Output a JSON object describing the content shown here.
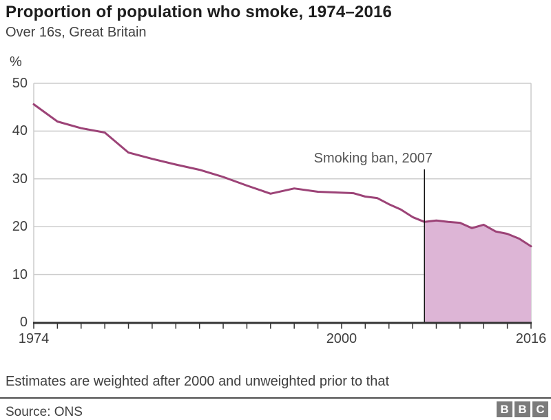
{
  "header": {
    "title": "Proportion of population who smoke, 1974–2016",
    "subtitle": "Over 16s, Great Britain"
  },
  "chart_data": {
    "type": "line",
    "title": "Proportion of population who smoke, 1974–2016",
    "subtitle": "Over 16s, Great Britain",
    "ylabel": "%",
    "xlim": [
      1974,
      2016
    ],
    "ylim": [
      0,
      50
    ],
    "yticks": [
      0,
      10,
      20,
      30,
      40,
      50
    ],
    "xticks": [
      {
        "label": "1974",
        "year": 1974
      },
      {
        "label": "2000",
        "year": 2000
      },
      {
        "label": "2016",
        "year": 2016
      }
    ],
    "tick_step_years": 2,
    "grid": true,
    "legend": "none",
    "x": [
      1974,
      1976,
      1978,
      1980,
      1982,
      1984,
      1986,
      1988,
      1990,
      1992,
      1994,
      1996,
      1998,
      2000,
      2001,
      2002,
      2003,
      2004,
      2005,
      2006,
      2007,
      2008,
      2009,
      2010,
      2011,
      2012,
      2013,
      2014,
      2015,
      2016
    ],
    "series": [
      {
        "name": "Proportion of population who smoke (%)",
        "values": [
          45.6,
          42.0,
          40.6,
          39.7,
          35.5,
          34.2,
          33.0,
          31.9,
          30.4,
          28.6,
          26.9,
          28.0,
          27.3,
          27.1,
          27.0,
          26.3,
          26.0,
          24.7,
          23.6,
          22.0,
          21.0,
          21.3,
          21.0,
          20.8,
          19.7,
          20.4,
          19.0,
          18.5,
          17.5,
          15.9
        ]
      }
    ],
    "annotation": {
      "label": "Smoking ban, 2007",
      "year": 2007
    },
    "shaded_from_year": 2007,
    "colors": {
      "line": "#9c4377",
      "fill": "#ddb5d6",
      "grid": "#cccccc",
      "axis": "#333333",
      "ban_line": "#111111"
    }
  },
  "footer": {
    "note": "Estimates are weighted after 2000 and unweighted prior to that",
    "source": "Source: ONS",
    "logo_letters": [
      "B",
      "B",
      "C"
    ]
  }
}
